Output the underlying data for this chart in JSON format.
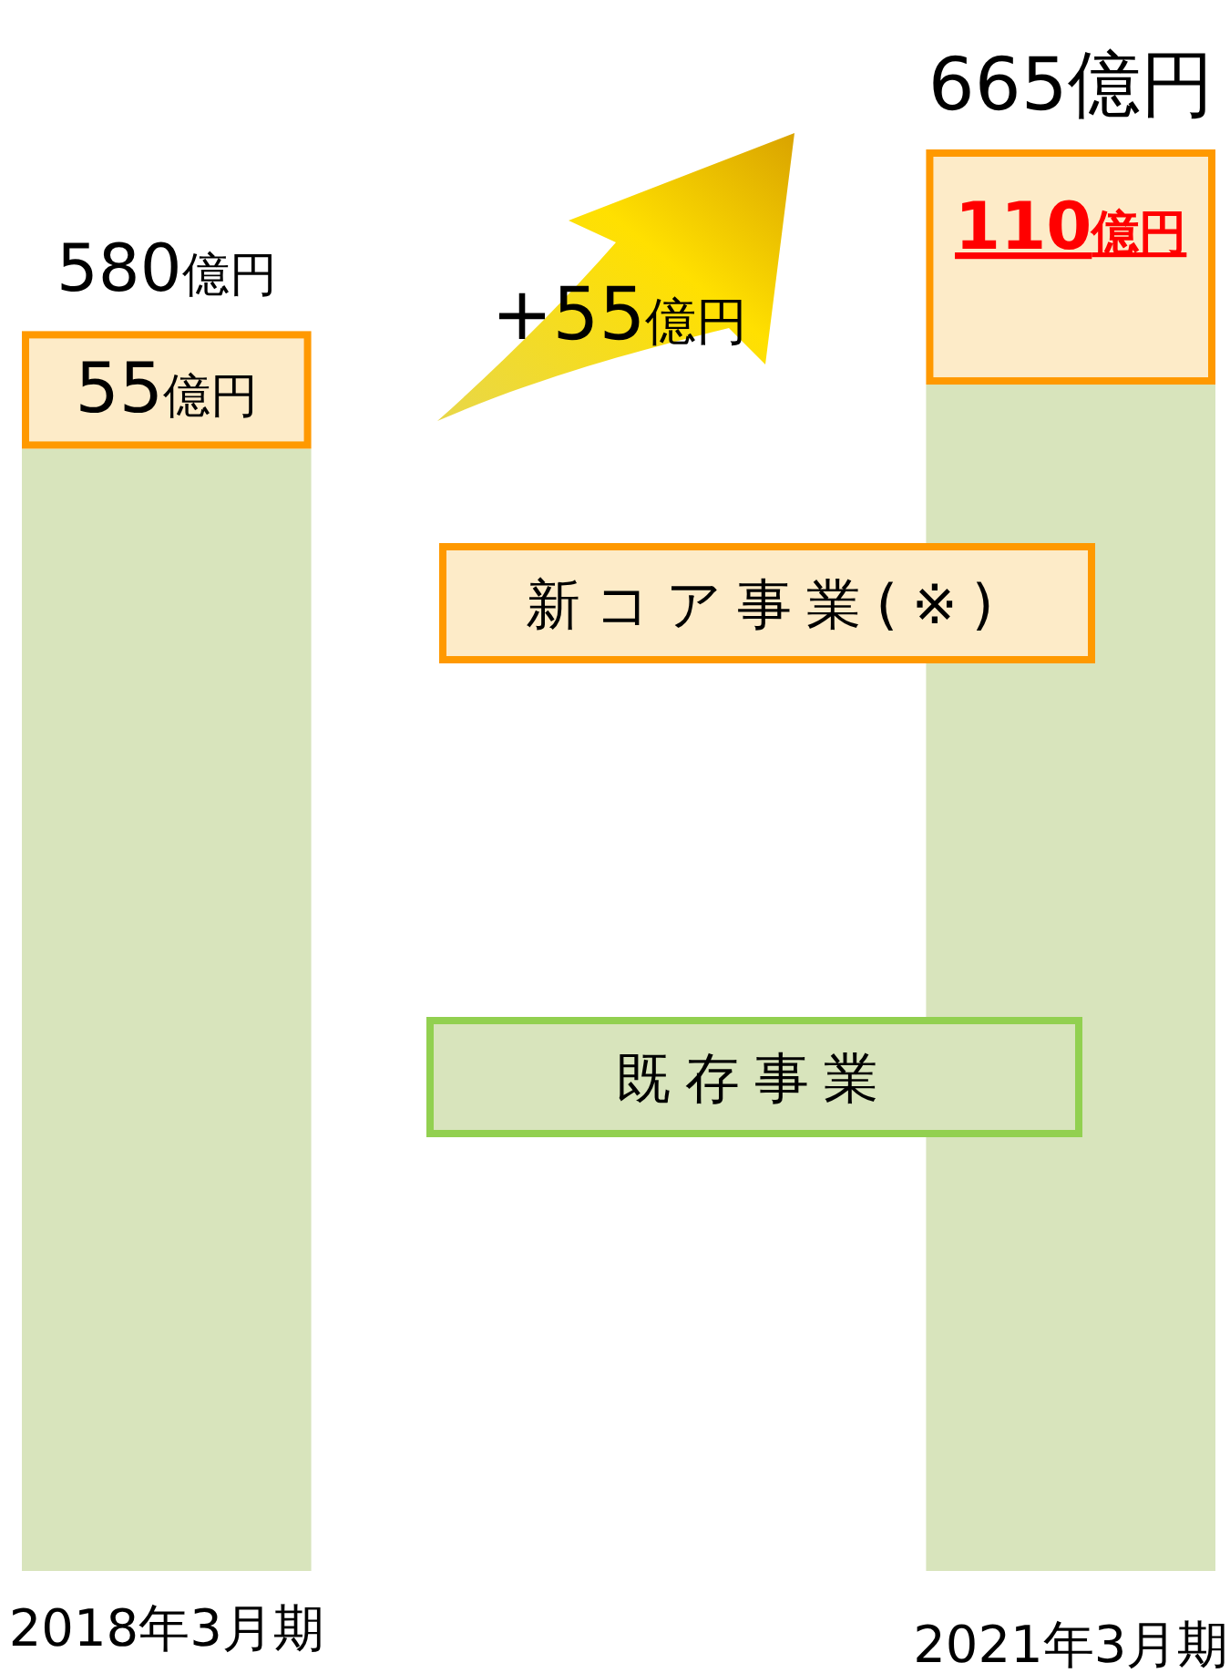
{
  "chart_data": {
    "type": "bar",
    "stacked": true,
    "categories": [
      "2018年3月期",
      "2021年3月期"
    ],
    "series": [
      {
        "name": "既存事業",
        "color": "#d8e4bc",
        "values": [
          525,
          555
        ]
      },
      {
        "name": "新コア事業(※)",
        "color": "#fdebc8",
        "values": [
          55,
          110
        ],
        "value_labels": [
          "55億円",
          "110億円"
        ]
      }
    ],
    "totals": [
      "580億円",
      "665億円"
    ],
    "annotations": [
      "+55億円"
    ],
    "legend": "center"
  }
}
